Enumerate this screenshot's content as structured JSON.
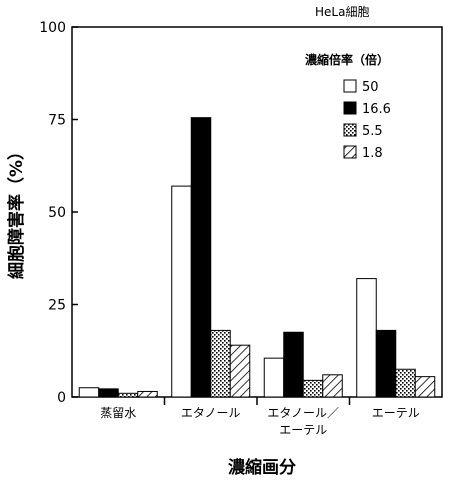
{
  "chart_data": {
    "type": "bar",
    "inset_label": "HeLa細胞",
    "xlabel": "濃縮画分",
    "ylabel": "細胞障害率（%）",
    "ylim": [
      0,
      100
    ],
    "yticks": [
      0,
      25,
      50,
      75,
      100
    ],
    "categories": [
      [
        "蒸留水"
      ],
      [
        "エタノール"
      ],
      [
        "エタノール／",
        "エーテル"
      ],
      [
        "エーテル"
      ]
    ],
    "legend": {
      "title": "濃縮倍率（倍）",
      "placement": "top-right"
    },
    "series": [
      {
        "name": "50",
        "pattern": "white",
        "values": [
          2.5,
          57,
          10.5,
          32
        ]
      },
      {
        "name": "16.6",
        "pattern": "black",
        "values": [
          2.2,
          75.5,
          17.5,
          18
        ]
      },
      {
        "name": "5.5",
        "pattern": "dotted",
        "values": [
          1,
          18,
          4.5,
          7.5
        ]
      },
      {
        "name": "1.8",
        "pattern": "hatch",
        "values": [
          1.5,
          14,
          6,
          5.5
        ]
      }
    ]
  }
}
